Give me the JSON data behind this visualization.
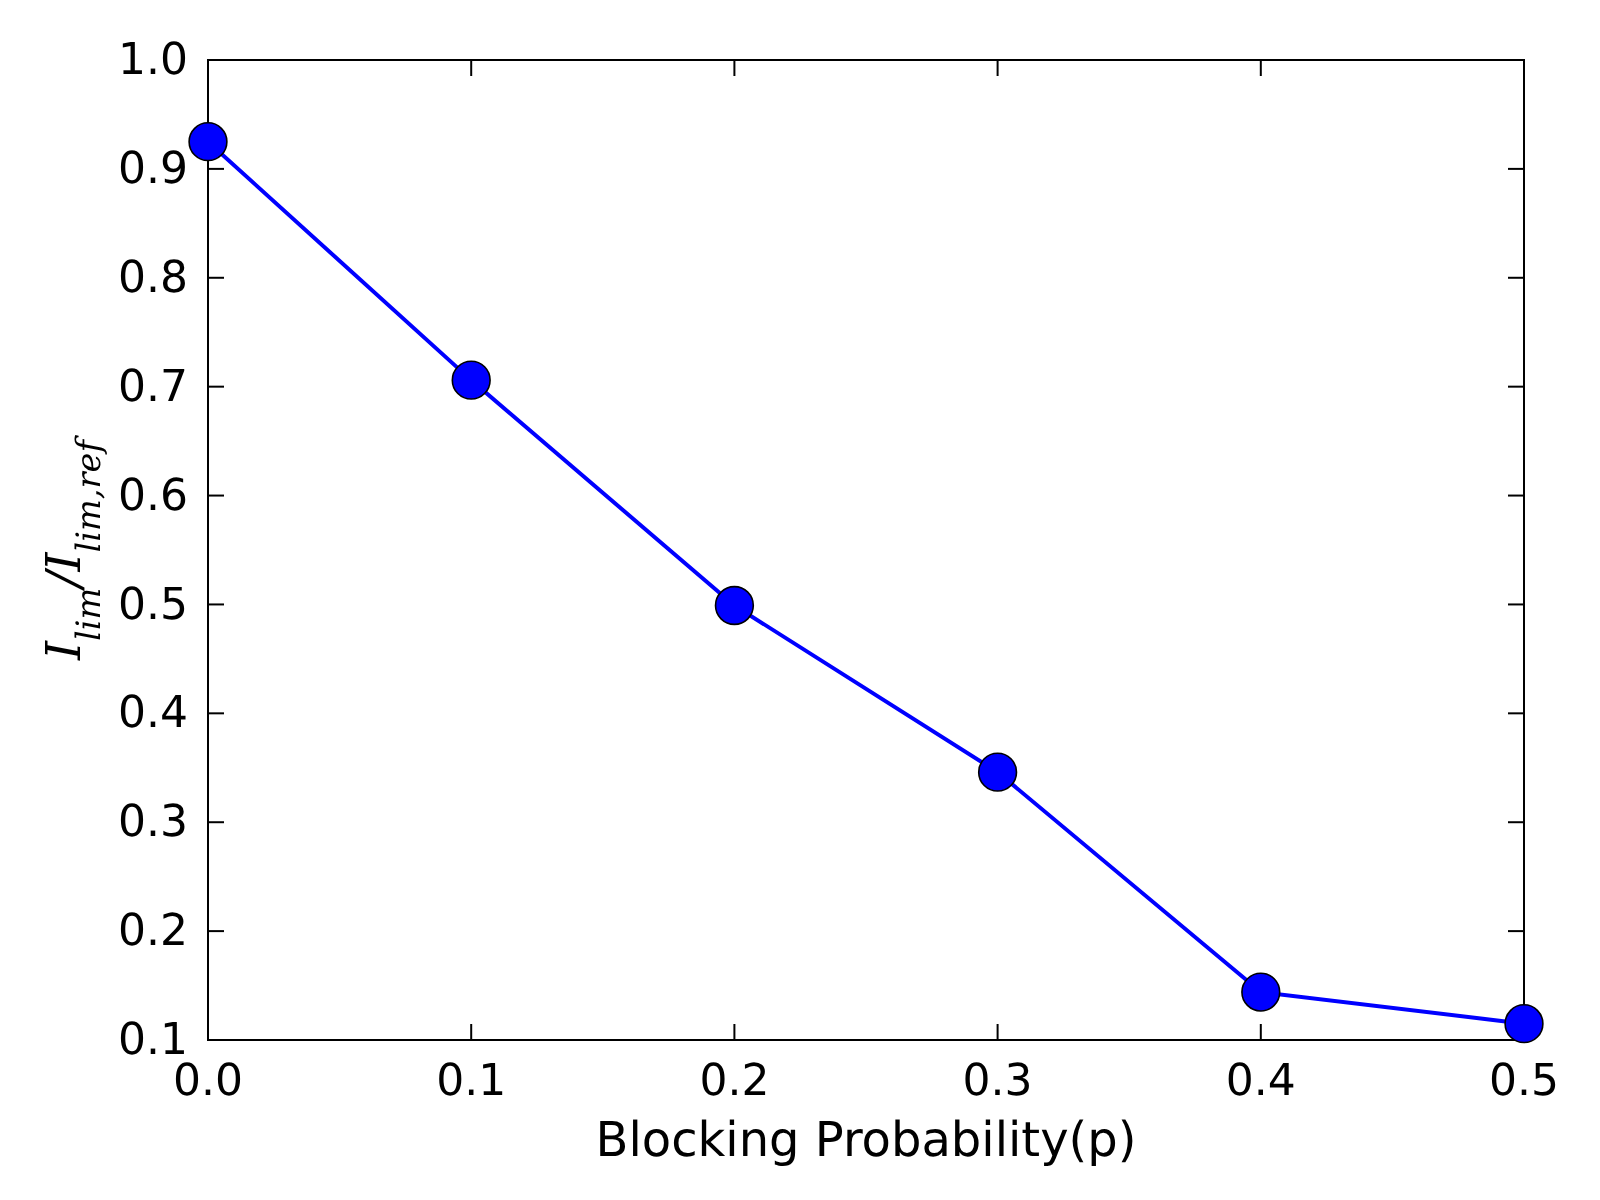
{
  "chart_data": {
    "type": "line",
    "xlabel": "Blocking Probability(p)",
    "ylabel": "I$_{lim}$/I$_{lim,ref}$",
    "x": [
      0.0,
      0.1,
      0.2,
      0.3,
      0.4,
      0.5
    ],
    "series": [
      {
        "color": "#0000ff",
        "values": [
          0.925,
          0.706,
          0.499,
          0.346,
          0.144,
          0.115
        ]
      }
    ],
    "xlim": [
      0.0,
      0.5
    ],
    "xticks": [
      {
        "value": 0,
        "label": "0.0"
      },
      0.1,
      0.2,
      0.3,
      0.4,
      0.5
    ],
    "ylim": [
      0.1,
      1.0
    ],
    "yticks": [
      0.1,
      0.2,
      0.3,
      0.4,
      0.5,
      0.6,
      0.7,
      0.8,
      0.9,
      {
        "value": 1,
        "label": "1.0"
      }
    ],
    "marker": "circle",
    "line_style": "solid",
    "grid": false
  }
}
